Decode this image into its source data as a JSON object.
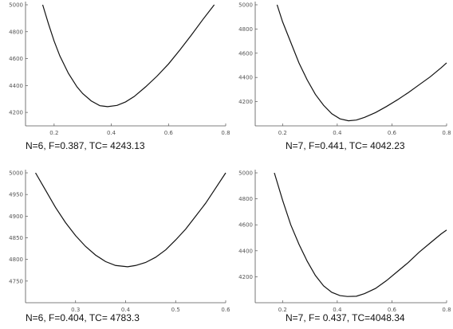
{
  "chart_data": [
    {
      "type": "line",
      "caption": "N=6,  F=0.387, TC= 4243.13",
      "xlim": [
        0.1,
        0.8
      ],
      "ylim": [
        4100,
        5000
      ],
      "x_ticks": [
        0.2,
        0.4,
        0.6,
        0.8
      ],
      "x_tick_labels": [
        "0.2",
        "0.4",
        "0.6",
        "0.8"
      ],
      "y_ticks": [
        4200,
        4400,
        4600,
        4800,
        5000
      ],
      "y_tick_labels": [
        "4200",
        "4400",
        "4600",
        "4800",
        "5000"
      ],
      "series": [
        {
          "x": [
            0.16,
            0.18,
            0.2,
            0.22,
            0.25,
            0.28,
            0.3,
            0.33,
            0.36,
            0.387,
            0.42,
            0.45,
            0.48,
            0.52,
            0.56,
            0.6,
            0.64,
            0.68,
            0.72,
            0.76
          ],
          "y": [
            5000,
            4860,
            4730,
            4620,
            4490,
            4390,
            4340,
            4285,
            4250,
            4243,
            4252,
            4278,
            4318,
            4390,
            4470,
            4560,
            4665,
            4775,
            4890,
            5000
          ]
        }
      ]
    },
    {
      "type": "line",
      "caption": "N=7, F=0.441, TC= 4042.23",
      "xlim": [
        0.1,
        0.8
      ],
      "ylim": [
        4000,
        5000
      ],
      "x_ticks": [
        0.2,
        0.4,
        0.6,
        0.8
      ],
      "x_tick_labels": [
        "0.2",
        "0.4",
        "0.6",
        "0.8"
      ],
      "y_ticks": [
        4200,
        4400,
        4600,
        4800,
        5000
      ],
      "y_tick_labels": [
        "4200",
        "4400",
        "4600",
        "4800",
        "5000"
      ],
      "series": [
        {
          "x": [
            0.18,
            0.2,
            0.23,
            0.26,
            0.29,
            0.32,
            0.35,
            0.38,
            0.41,
            0.441,
            0.47,
            0.5,
            0.54,
            0.58,
            0.62,
            0.66,
            0.7,
            0.74,
            0.78,
            0.8
          ],
          "y": [
            5000,
            4860,
            4690,
            4520,
            4380,
            4260,
            4170,
            4100,
            4058,
            4042,
            4048,
            4070,
            4110,
            4160,
            4215,
            4275,
            4340,
            4405,
            4480,
            4520
          ]
        }
      ]
    },
    {
      "type": "line",
      "caption": "N=6,  F=0.404, TC= 4783.3",
      "xlim": [
        0.2,
        0.6
      ],
      "ylim": [
        4700,
        5000
      ],
      "x_ticks": [
        0.3,
        0.4,
        0.5,
        0.6
      ],
      "x_tick_labels": [
        "0.3",
        "0.4",
        "0.5",
        "0.6"
      ],
      "y_ticks": [
        4750,
        4800,
        4850,
        4900,
        4950,
        5000
      ],
      "y_tick_labels": [
        "4750",
        "4800",
        "4850",
        "4900",
        "4950",
        "5000"
      ],
      "series": [
        {
          "x": [
            0.22,
            0.24,
            0.26,
            0.28,
            0.3,
            0.32,
            0.34,
            0.36,
            0.38,
            0.404,
            0.42,
            0.44,
            0.46,
            0.48,
            0.5,
            0.52,
            0.54,
            0.56,
            0.58,
            0.6
          ],
          "y": [
            5000,
            4960,
            4920,
            4885,
            4855,
            4830,
            4810,
            4795,
            4786,
            4783,
            4786,
            4793,
            4805,
            4822,
            4845,
            4870,
            4900,
            4930,
            4965,
            5000
          ]
        }
      ]
    },
    {
      "type": "line",
      "caption": "N=7, F= 0.437, TC=4048.34",
      "xlim": [
        0.1,
        0.8
      ],
      "ylim": [
        4000,
        5000
      ],
      "x_ticks": [
        0.2,
        0.4,
        0.6,
        0.8
      ],
      "x_tick_labels": [
        "0.2",
        "0.4",
        "0.6",
        "0.8"
      ],
      "y_ticks": [
        4200,
        4400,
        4600,
        4800,
        5000
      ],
      "y_tick_labels": [
        "4200",
        "4400",
        "4600",
        "4800",
        "5000"
      ],
      "series": [
        {
          "x": [
            0.17,
            0.2,
            0.23,
            0.26,
            0.29,
            0.32,
            0.35,
            0.38,
            0.41,
            0.437,
            0.47,
            0.5,
            0.54,
            0.58,
            0.62,
            0.66,
            0.7,
            0.74,
            0.78,
            0.8
          ],
          "y": [
            5000,
            4790,
            4600,
            4450,
            4320,
            4210,
            4130,
            4080,
            4055,
            4048,
            4050,
            4070,
            4110,
            4170,
            4240,
            4310,
            4390,
            4460,
            4530,
            4560
          ]
        }
      ]
    }
  ]
}
